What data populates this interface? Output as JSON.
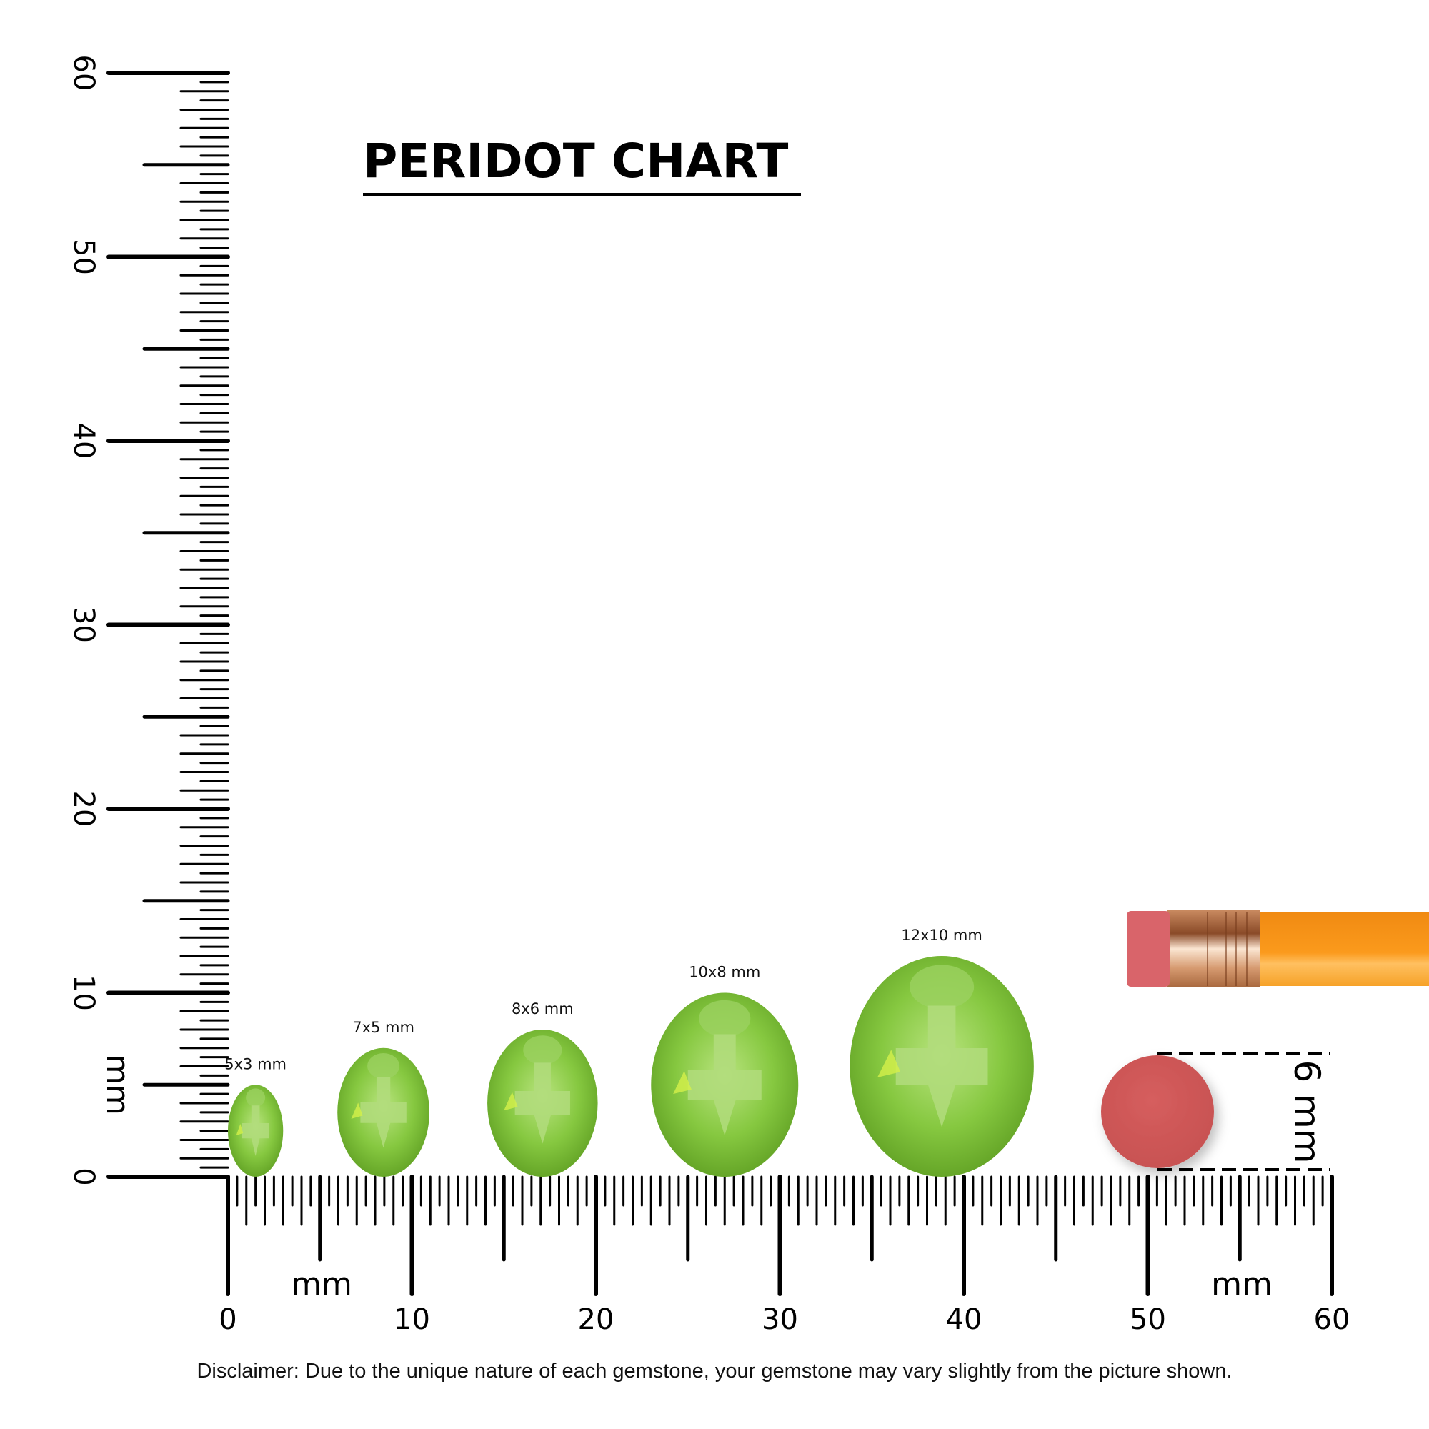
{
  "title": "PERIDOT CHART",
  "unit_label": "mm",
  "vertical_ruler": {
    "labels": [
      "0",
      "10",
      "20",
      "30",
      "40",
      "50",
      "60"
    ],
    "unit": "mm",
    "range_mm": [
      0,
      60
    ]
  },
  "horizontal_ruler": {
    "labels": [
      "0",
      "10",
      "20",
      "30",
      "40",
      "50",
      "60"
    ],
    "unit": "mm",
    "range_mm": [
      0,
      60
    ]
  },
  "gems": [
    {
      "label": "5x3 mm",
      "length_mm": 5,
      "width_mm": 3
    },
    {
      "label": "7x5 mm",
      "length_mm": 7,
      "width_mm": 5
    },
    {
      "label": "8x6 mm",
      "length_mm": 8,
      "width_mm": 6
    },
    {
      "label": "10x8 mm",
      "length_mm": 10,
      "width_mm": 8
    },
    {
      "label": "12x10 mm",
      "length_mm": 12,
      "width_mm": 10
    }
  ],
  "eraser_reference": {
    "label": "6 mm",
    "diameter_mm": 6,
    "color": "#d05a5a"
  },
  "colors": {
    "gem": "#7cc23a",
    "gem_light": "#b5e27a",
    "pencil": "#f7941d",
    "ferrule": "#e8b08a"
  },
  "disclaimer": "Disclaimer: Due to the unique nature of each gemstone, your gemstone may vary slightly from the picture shown."
}
